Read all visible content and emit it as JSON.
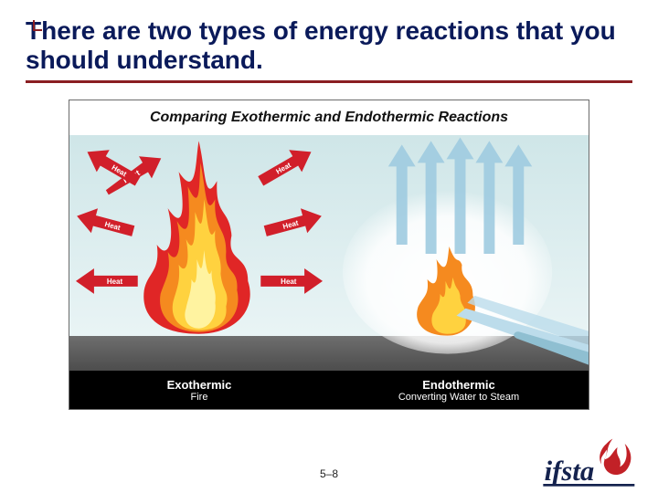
{
  "colors": {
    "rule": "#8a1e22",
    "tick": "#8a1e22",
    "title": "#0a1a5a",
    "sky_top": "#cfe6e8",
    "sky_bottom": "#e9f4f5",
    "ground_top": "#6e6e6e",
    "ground_bottom": "#4b4b4b",
    "label_band": "#000000",
    "fire_outer": "#e02626",
    "fire_mid": "#f58a1f",
    "fire_inner": "#ffd23f",
    "fire_core": "#fff3a0",
    "arrow_red": "#d11f2a",
    "arrow_label": "#ffffff",
    "steam_arrow": "#9fcbe0",
    "steam_cloud": "#ffffff",
    "small_fire": "#f58a1f",
    "small_fire_core": "#ffd23f",
    "hose": "#8fbfd1",
    "water": "#bcdceb",
    "logo_red": "#c22127",
    "logo_blue": "#14224e"
  },
  "title": "There are two types of energy reactions that you should understand.",
  "figure": {
    "title": "Comparing Exothermic and Endothermic Reactions",
    "heat_label": "Heat",
    "panels": {
      "left": {
        "main": "Exothermic",
        "sub": "Fire"
      },
      "right": {
        "main": "Endothermic",
        "sub": "Converting Water to Steam"
      }
    }
  },
  "page_number": "5–8",
  "logo": {
    "text": "ifsta"
  }
}
